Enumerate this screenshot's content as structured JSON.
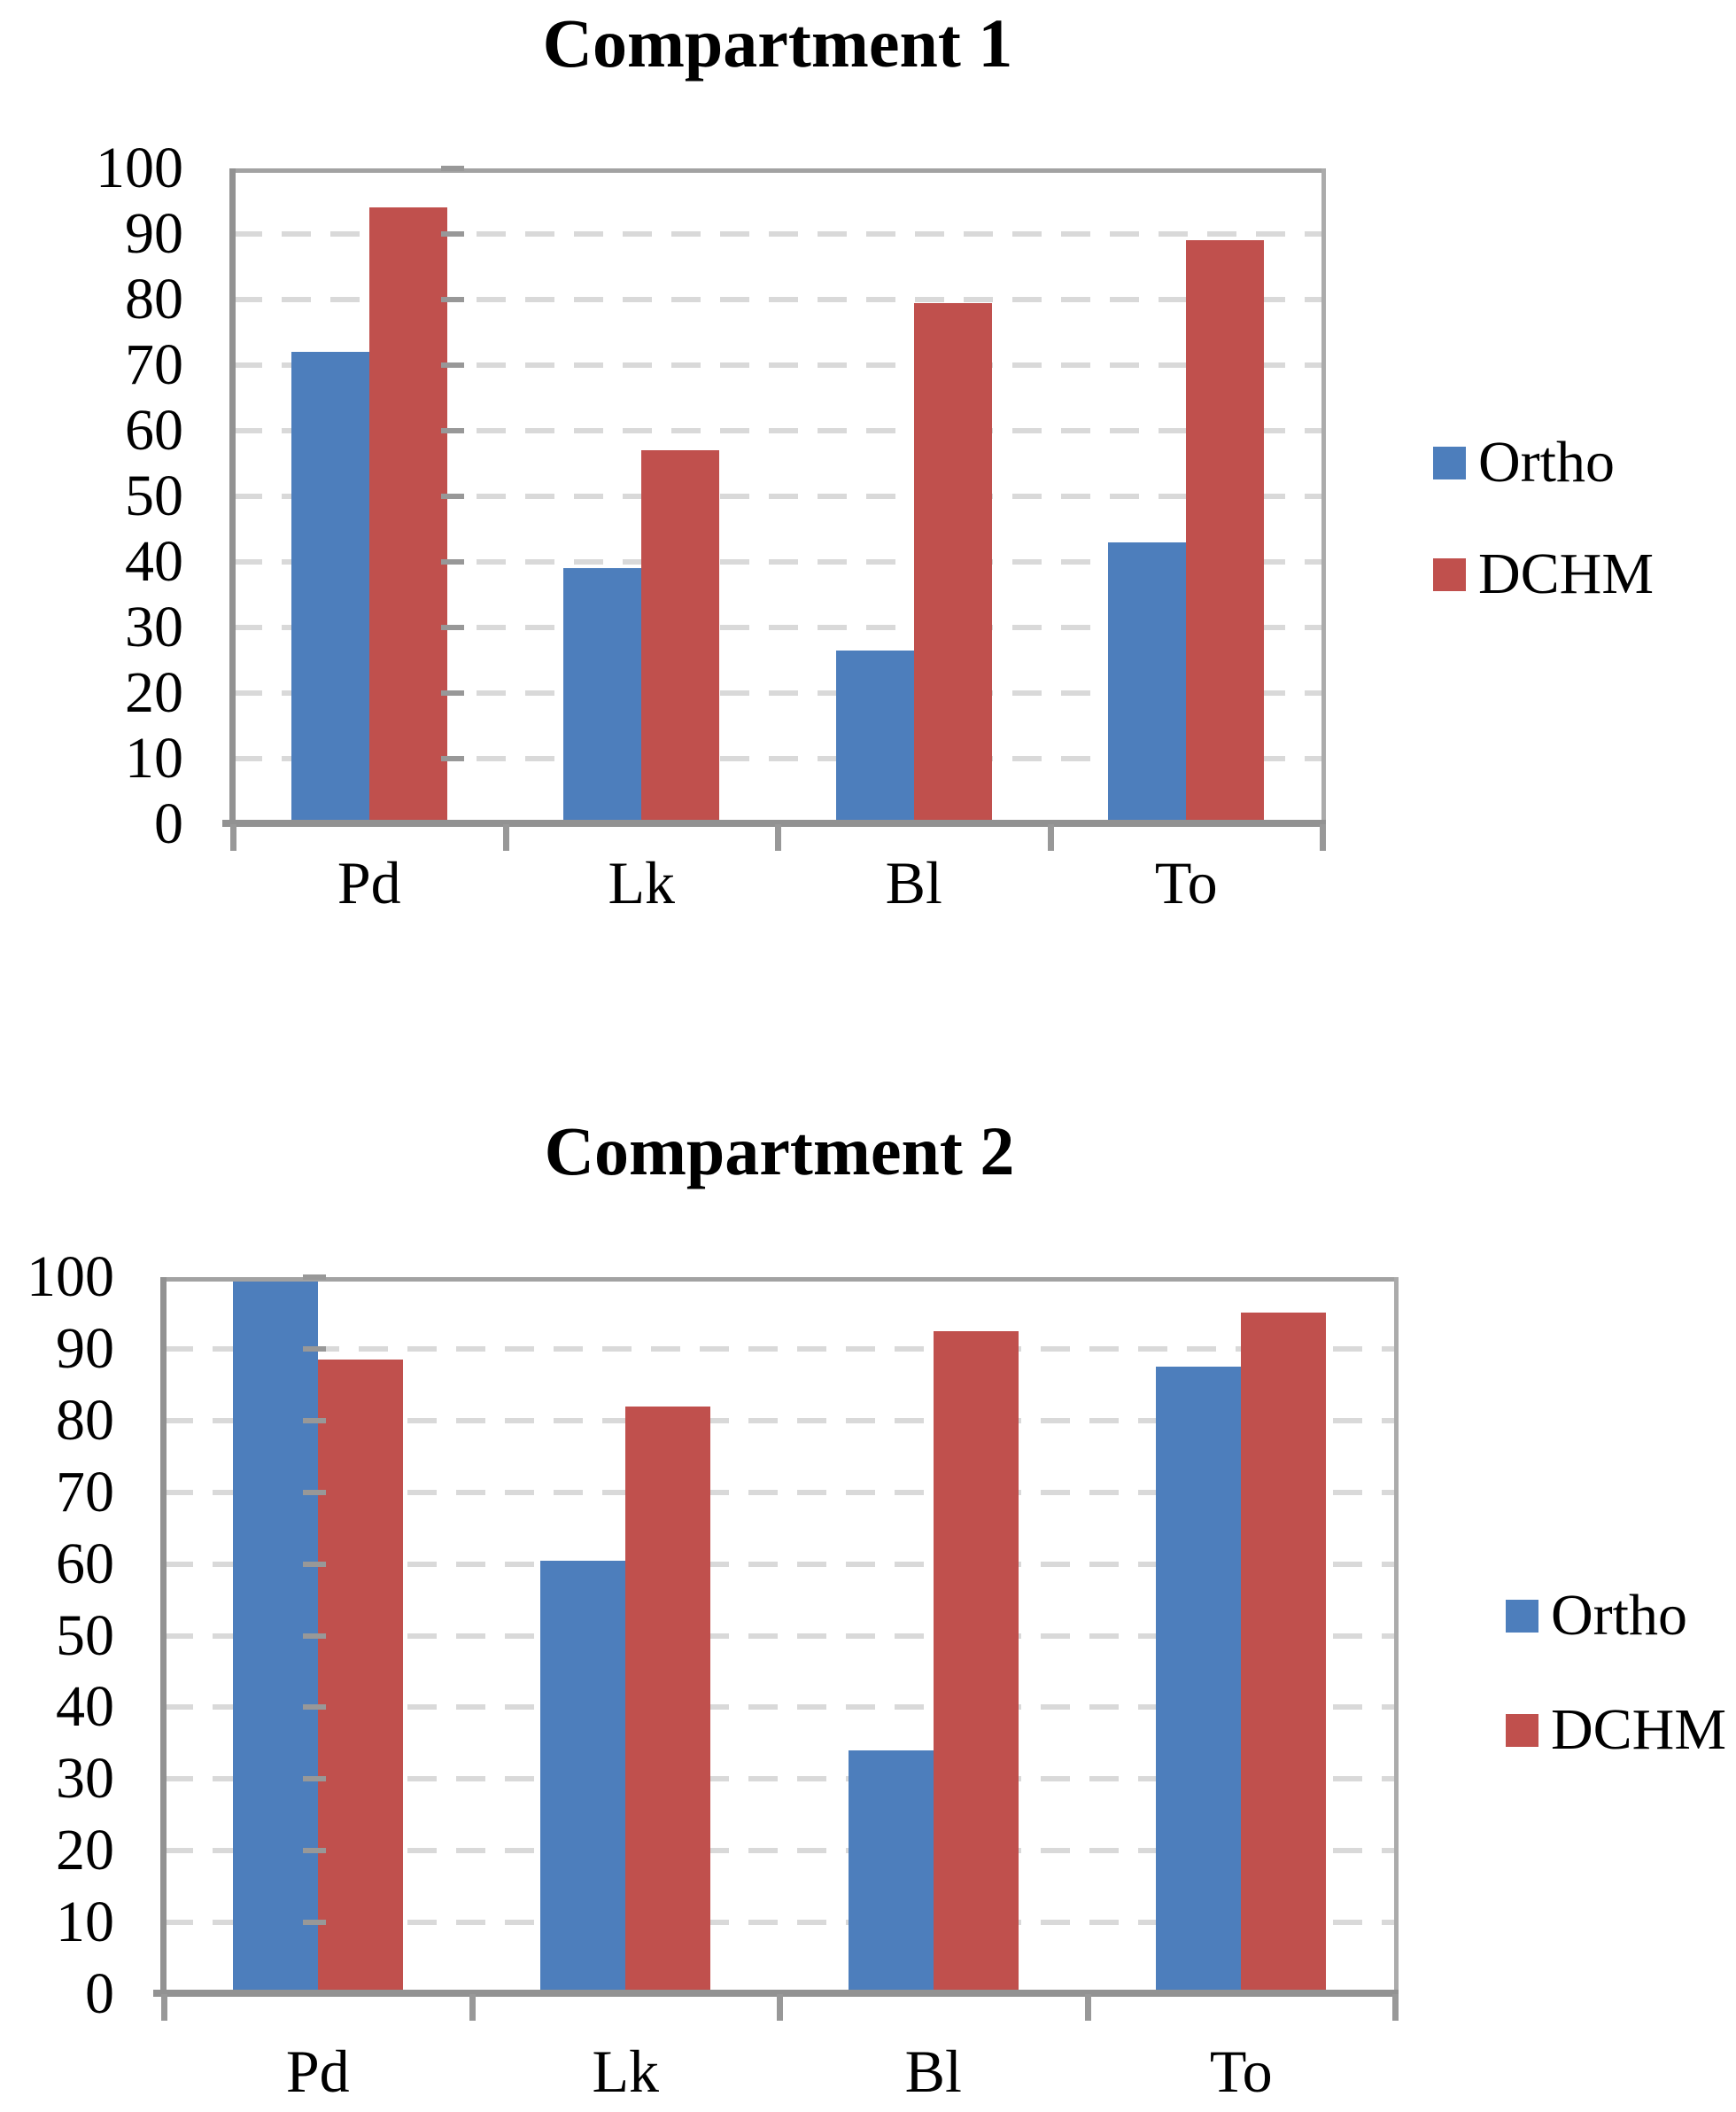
{
  "page_background": "#FFFFFF",
  "text_color": "#000000",
  "gridline_color": "#D9D9D9",
  "axis_color": "#929292",
  "plot_border_color": "#A6A6A6",
  "chart_data": [
    {
      "type": "bar",
      "title": "Compartment 1",
      "categories": [
        "Pd",
        "Lk",
        "Bl",
        "To"
      ],
      "series": [
        {
          "name": "Ortho",
          "color": "#4D7EBC",
          "values": [
            72,
            39,
            26.5,
            43
          ]
        },
        {
          "name": "DCHM",
          "color": "#C0504D",
          "values": [
            94,
            57,
            79.5,
            89
          ]
        }
      ],
      "xlabel": "",
      "ylabel": "",
      "ylim": [
        0,
        100
      ],
      "ytick_step": 10,
      "ytick_labels": [
        "0",
        "10",
        "20",
        "30",
        "40",
        "50",
        "60",
        "70",
        "80",
        "90",
        "100"
      ],
      "grid": "dashed-horizontal",
      "legend_position": "right-middle"
    },
    {
      "type": "bar",
      "title": "Compartment 2",
      "categories": [
        "Pd",
        "Lk",
        "Bl",
        "To"
      ],
      "series": [
        {
          "name": "Ortho",
          "color": "#4D7EBC",
          "values": [
            100,
            60.5,
            34,
            87.5
          ]
        },
        {
          "name": "DCHM",
          "color": "#C0504D",
          "values": [
            88.5,
            82,
            92.5,
            95
          ]
        }
      ],
      "xlabel": "",
      "ylabel": "",
      "ylim": [
        0,
        100
      ],
      "ytick_step": 10,
      "ytick_labels": [
        "0",
        "10",
        "20",
        "30",
        "40",
        "50",
        "60",
        "70",
        "80",
        "90",
        "100"
      ],
      "grid": "dashed-horizontal",
      "legend_position": "right-middle"
    }
  ]
}
